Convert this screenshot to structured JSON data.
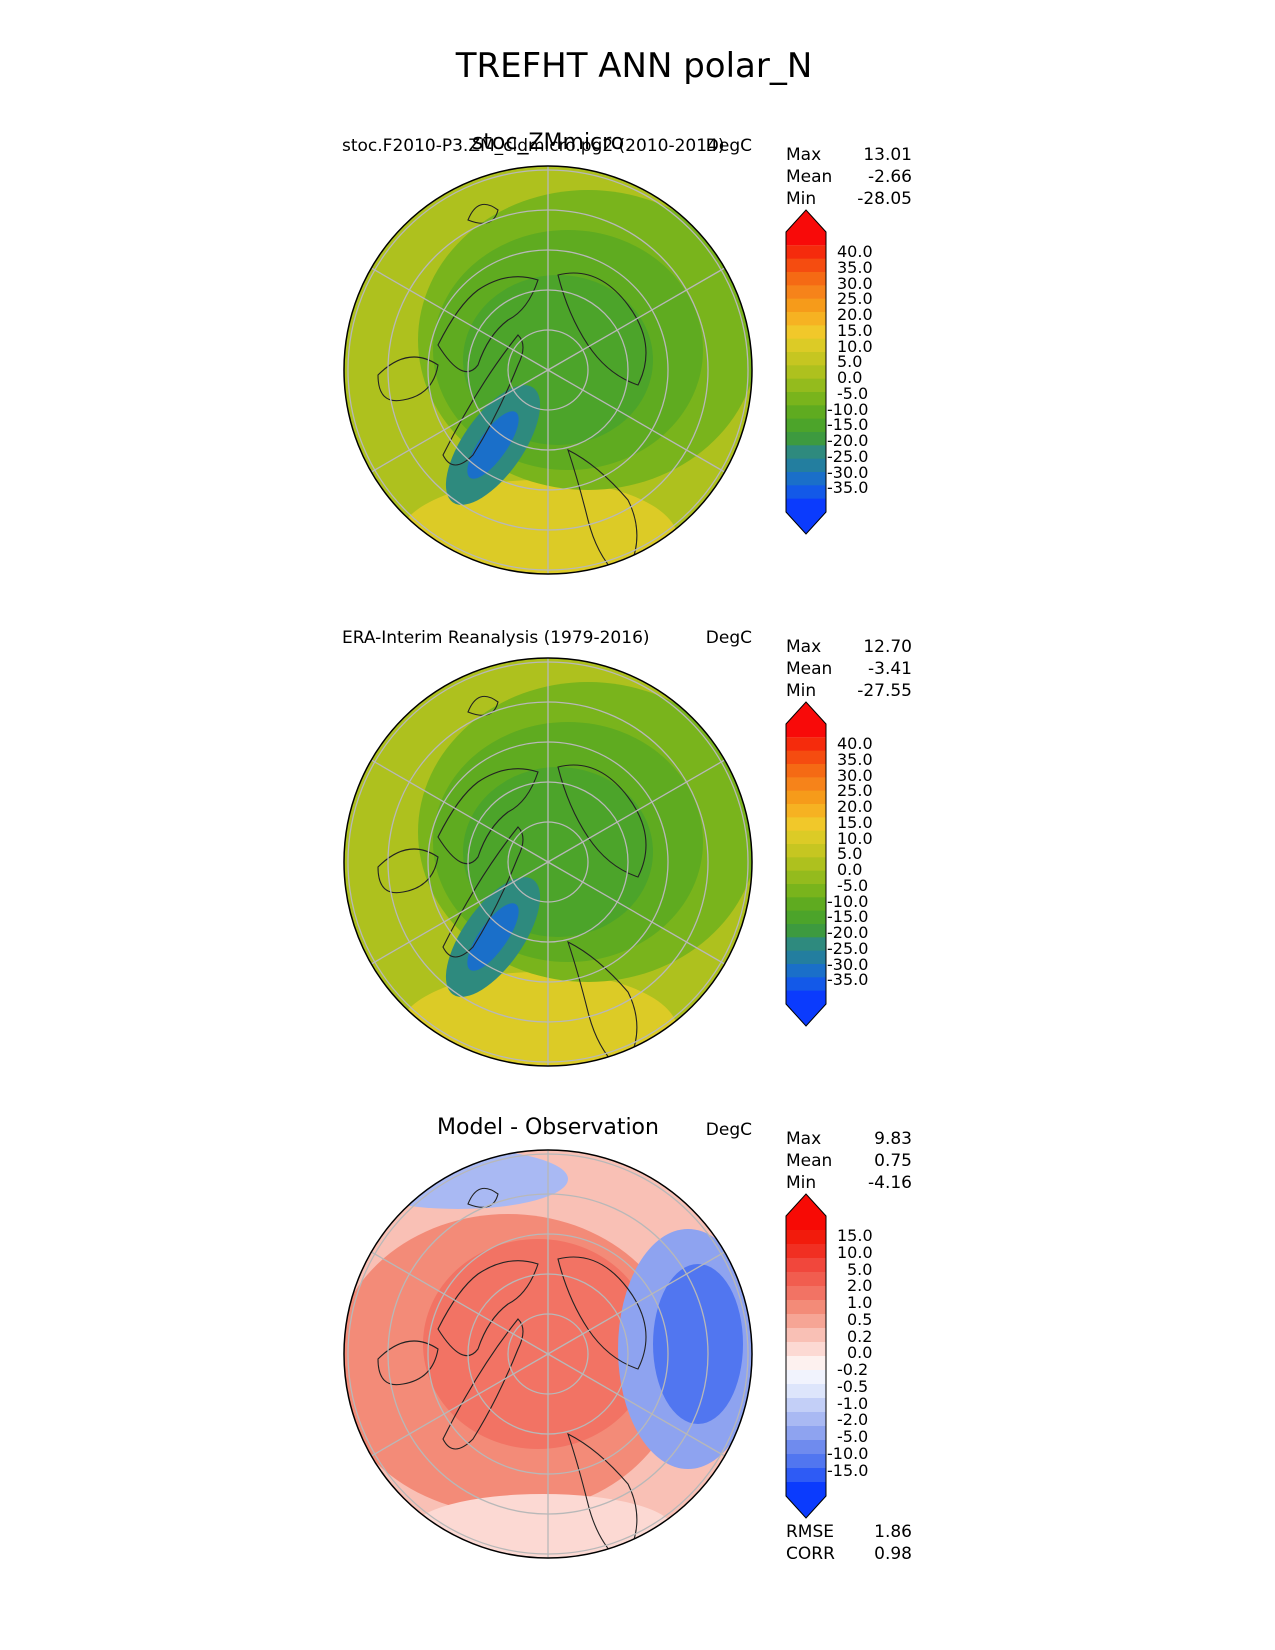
{
  "figure_title": "TREFHT ANN polar_N",
  "colors": {
    "model_ramp": [
      "#0b3bfd",
      "#1359e8",
      "#1a6fc9",
      "#237e9f",
      "#2e8a7e",
      "#3d9a3f",
      "#4ca42a",
      "#5fab20",
      "#79b41c",
      "#94bb1d",
      "#aec11e",
      "#c6c621",
      "#dccb26",
      "#f1c82a",
      "#f6b222",
      "#f69b1a",
      "#f6831a",
      "#f56a14",
      "#f54c10",
      "#f52b0c",
      "#f80a09"
    ],
    "diff_ramp": [
      "#0b3bfd",
      "#2e5bf5",
      "#5176f0",
      "#6f8bee",
      "#8ea3f0",
      "#a9b9f3",
      "#c3cff7",
      "#dde5fb",
      "#f1f3fd",
      "#fdf1ef",
      "#fcd9d3",
      "#f9c0b5",
      "#f6a595",
      "#f38b78",
      "#f27364",
      "#f15d4f",
      "#f1473c",
      "#f12f22",
      "#f21b0c",
      "#f70a05"
    ]
  },
  "chart_data": [
    {
      "type": "heatmap",
      "subtype": "polar-stereographic contour map",
      "panel": "model",
      "left_title": "stoc.F2010-P3.ZM_cldmicro.pg2 (2010-2014)",
      "center_title": "stoc_ZMmicro",
      "units": "DegC",
      "stats": [
        {
          "label": "Max",
          "value": "13.01"
        },
        {
          "label": "Mean",
          "value": "-2.66"
        },
        {
          "label": "Min",
          "value": "-28.05"
        }
      ],
      "colorbar_levels": [
        "40.0",
        "35.0",
        "30.0",
        "25.0",
        "20.0",
        "15.0",
        "10.0",
        "5.0",
        "0.0",
        "-5.0",
        "-10.0",
        "-15.0",
        "-20.0",
        "-25.0",
        "-30.0",
        "-35.0"
      ],
      "value_range": [
        -35,
        40
      ]
    },
    {
      "type": "heatmap",
      "subtype": "polar-stereographic contour map",
      "panel": "observation",
      "left_title": "ERA-Interim Reanalysis (1979-2016)",
      "center_title": "",
      "units": "DegC",
      "stats": [
        {
          "label": "Max",
          "value": "12.70"
        },
        {
          "label": "Mean",
          "value": "-3.41"
        },
        {
          "label": "Min",
          "value": "-27.55"
        }
      ],
      "colorbar_levels": [
        "40.0",
        "35.0",
        "30.0",
        "25.0",
        "20.0",
        "15.0",
        "10.0",
        "5.0",
        "0.0",
        "-5.0",
        "-10.0",
        "-15.0",
        "-20.0",
        "-25.0",
        "-30.0",
        "-35.0"
      ],
      "value_range": [
        -35,
        40
      ]
    },
    {
      "type": "heatmap",
      "subtype": "polar-stereographic contour map",
      "panel": "difference",
      "left_title": "",
      "center_title": "Model - Observation",
      "units": "DegC",
      "stats": [
        {
          "label": "Max",
          "value": "9.83"
        },
        {
          "label": "Mean",
          "value": "0.75"
        },
        {
          "label": "Min",
          "value": "-4.16"
        }
      ],
      "colorbar_levels": [
        "15.0",
        "10.0",
        "5.0",
        "2.0",
        "1.0",
        "0.5",
        "0.2",
        "0.0",
        "-0.2",
        "-0.5",
        "-1.0",
        "-2.0",
        "-5.0",
        "-10.0",
        "-15.0"
      ],
      "extra_stats": [
        {
          "label": "RMSE",
          "value": "1.86"
        },
        {
          "label": "CORR",
          "value": "0.98"
        }
      ]
    }
  ]
}
